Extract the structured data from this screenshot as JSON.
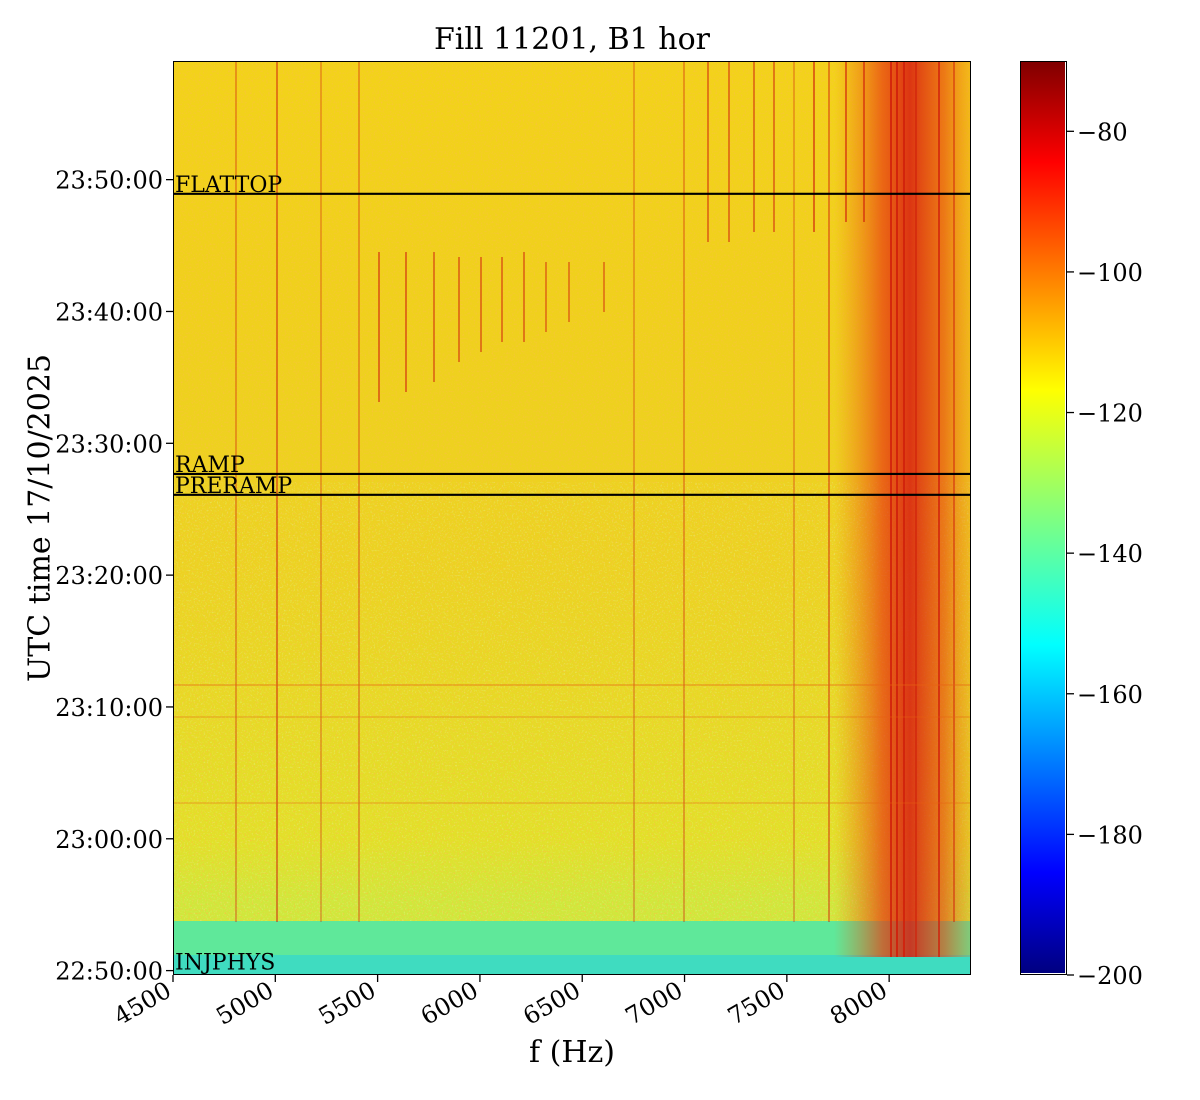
{
  "chart_data": {
    "type": "heatmap",
    "title": "Fill 11201, B1 hor",
    "xlabel": "f (Hz)",
    "ylabel": "UTC time 17/10/2025",
    "xlim": [
      4500,
      8400
    ],
    "x_ticks": [
      4500,
      5000,
      5500,
      6000,
      6500,
      7000,
      7500,
      8000
    ],
    "x_tick_labels": [
      "4500",
      "5000",
      "5500",
      "6000",
      "6500",
      "7000",
      "7500",
      "8000"
    ],
    "y_range_minutes": [
      "22:49:40",
      "23:59:00"
    ],
    "y_tick_labels": [
      "22:50:00",
      "23:00:00",
      "23:10:00",
      "23:20:00",
      "23:30:00",
      "23:40:00",
      "23:50:00"
    ],
    "colormap": "jet",
    "colorbar": {
      "range": [
        -200,
        -70
      ],
      "tick_values": [
        -80,
        -100,
        -120,
        -140,
        -160,
        -180,
        -200
      ],
      "tick_labels": [
        "−80",
        "−100",
        "−120",
        "−140",
        "−160",
        "−180",
        "−200"
      ]
    },
    "events": [
      {
        "label": "FLATTOP",
        "time": "23:49:00"
      },
      {
        "label": "RAMP",
        "time": "23:27:45"
      },
      {
        "label": "PRERAMP",
        "time": "23:26:10"
      },
      {
        "label": "INJPHYS",
        "time": "22:50:00"
      }
    ]
  }
}
